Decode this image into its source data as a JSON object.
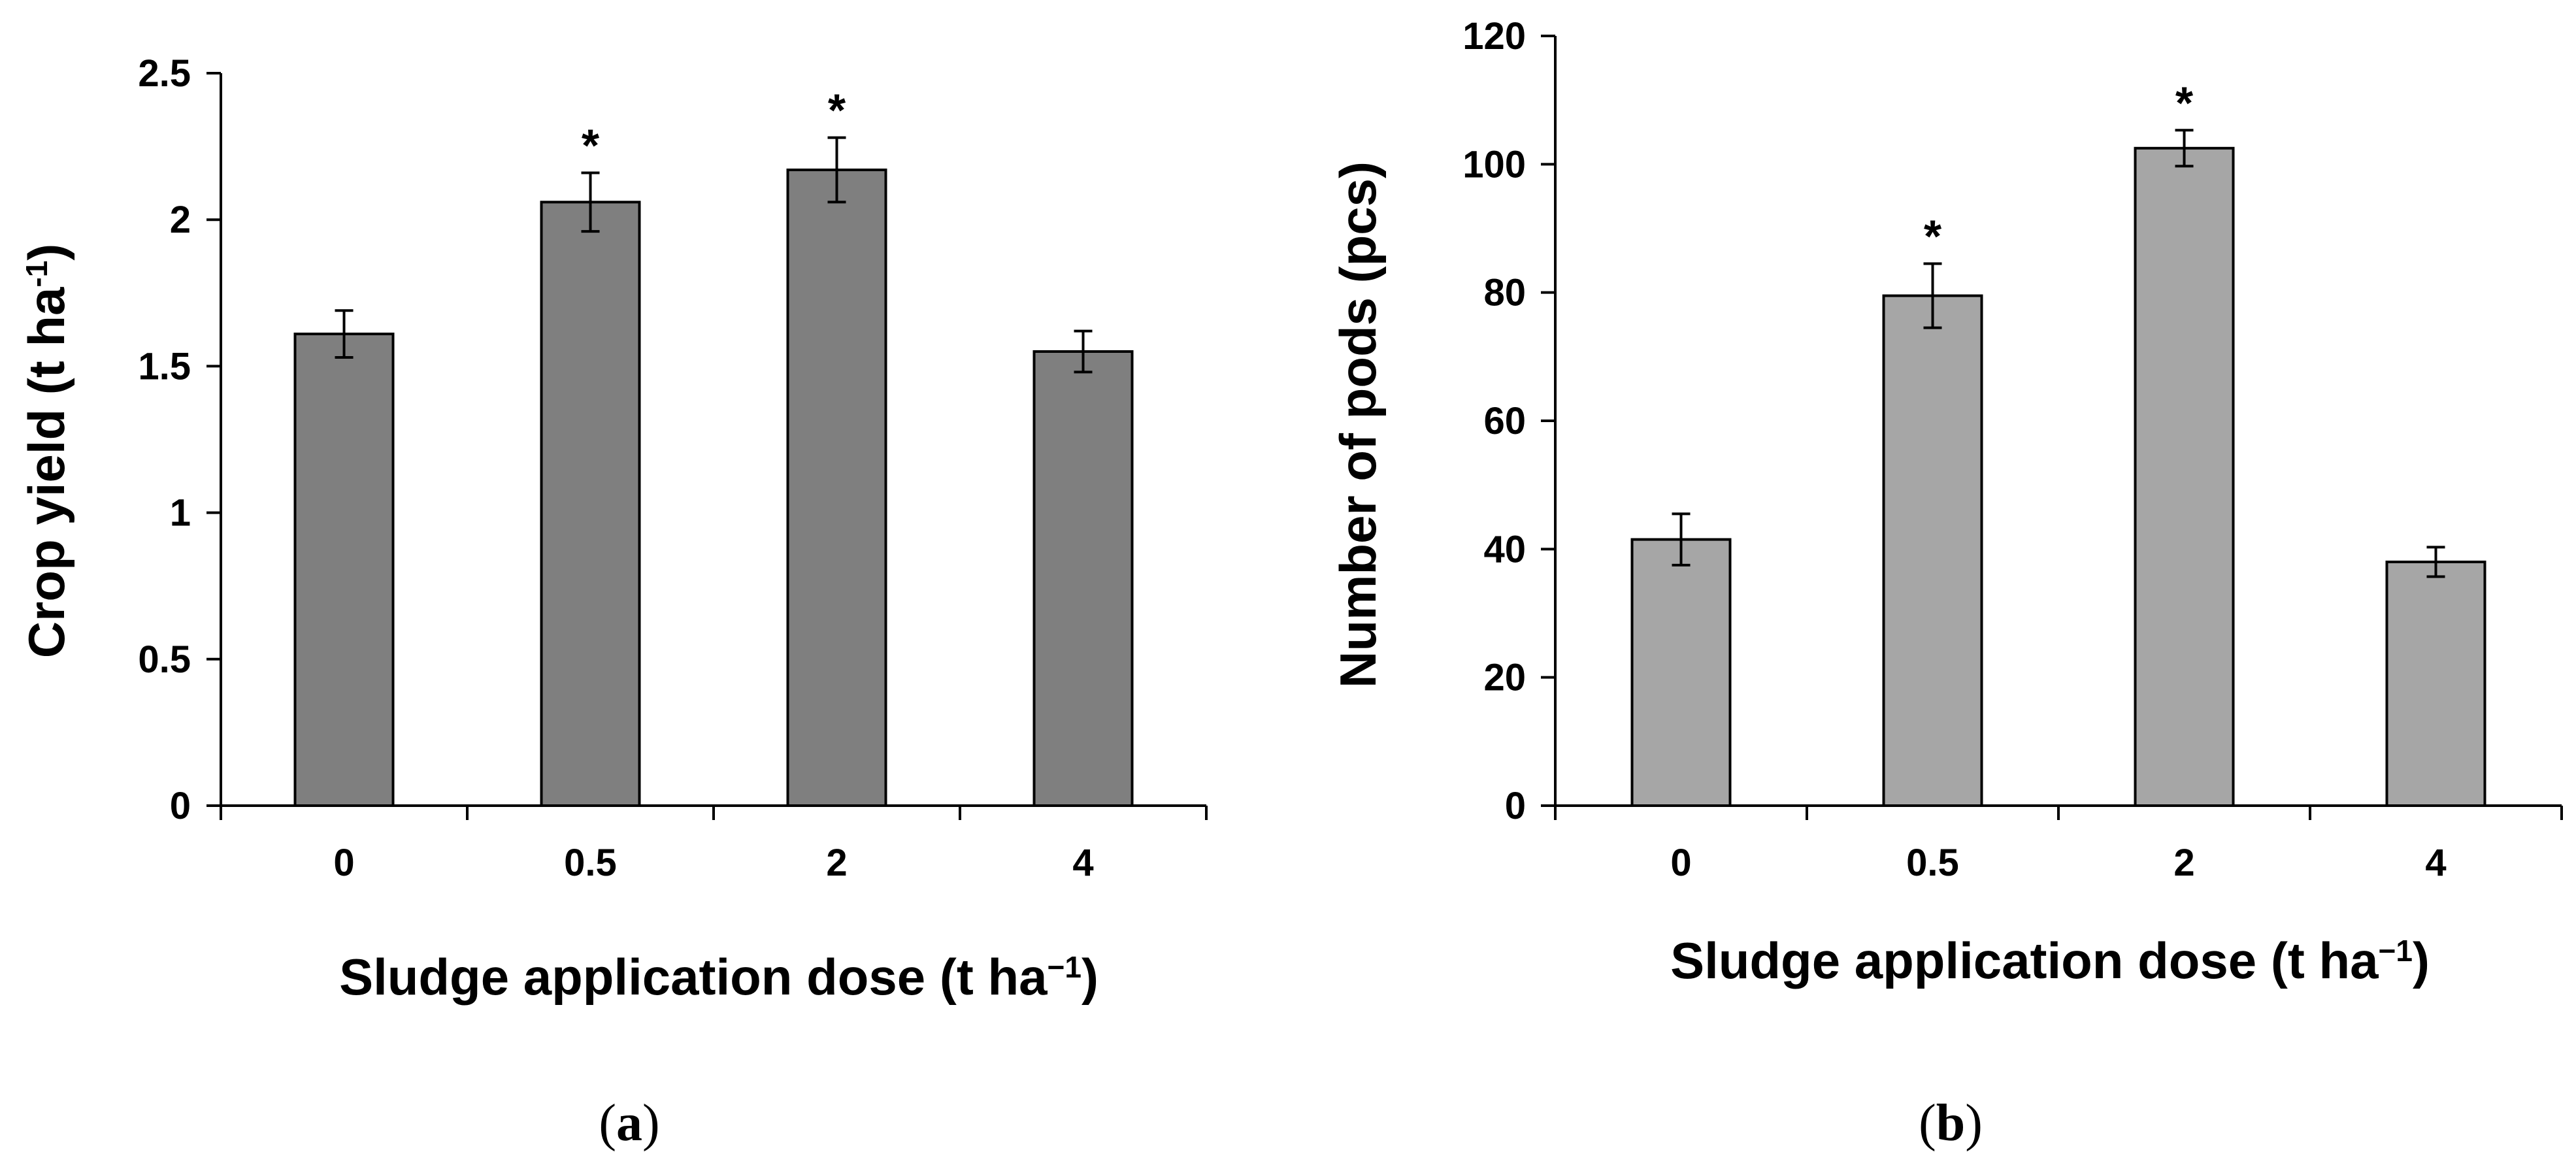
{
  "colors": {
    "panel_a_bar": "#7f7f7f",
    "panel_b_bar": "#a6a6a6"
  },
  "chart_data": [
    {
      "type": "bar",
      "panel": "a",
      "panel_label": "a",
      "categories": [
        "0",
        "0.5",
        "2",
        "4"
      ],
      "values": [
        1.61,
        2.06,
        2.17,
        1.55
      ],
      "errors": [
        0.08,
        0.1,
        0.11,
        0.07
      ],
      "significance": [
        "",
        "*",
        "*",
        ""
      ],
      "ylim": [
        0,
        2.5
      ],
      "yticks": [
        "0",
        "0.5",
        "1",
        "1.5",
        "2",
        "2.5"
      ],
      "ylabel": {
        "main": "Crop yield (t ha",
        "sup": "-1",
        "close": ")"
      },
      "xlabel": {
        "main": "Sludge application dose (t ha",
        "sup": "−1",
        "close": ")"
      }
    },
    {
      "type": "bar",
      "panel": "b",
      "panel_label": "b",
      "categories": [
        "0",
        "0.5",
        "2",
        "4"
      ],
      "values": [
        41.5,
        79.5,
        102.5,
        38.0
      ],
      "errors": [
        4.0,
        5.0,
        2.8,
        2.3
      ],
      "significance": [
        "",
        "*",
        "*",
        ""
      ],
      "ylim": [
        0,
        120
      ],
      "yticks": [
        "0",
        "20",
        "40",
        "60",
        "80",
        "100",
        "120"
      ],
      "ylabel": {
        "main": "Number of pods (pcs)"
      },
      "xlabel": {
        "main": "Sludge application dose (t ha",
        "sup": "−1",
        "close": ")"
      }
    }
  ]
}
